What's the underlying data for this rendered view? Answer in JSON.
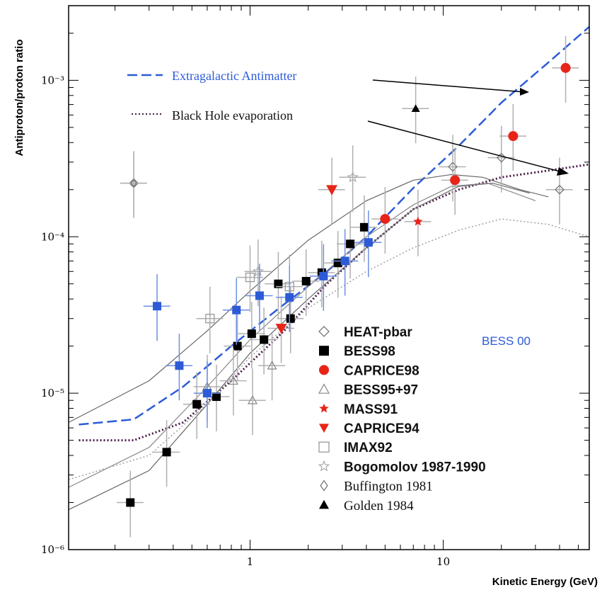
{
  "chart_data": {
    "type": "scatter",
    "xlabel": "Kinetic Energy (GeV)",
    "ylabel": "Antiproton/proton ratio",
    "xscale": "log",
    "yscale": "log",
    "xlim": [
      0.115,
      57
    ],
    "ylim": [
      1e-06,
      0.003
    ],
    "x_ticks": [
      {
        "value": 1,
        "label": "1"
      },
      {
        "value": 10,
        "label": "10"
      }
    ],
    "y_ticks": [
      {
        "value": 1e-06,
        "label": "10⁻⁶"
      },
      {
        "value": 1e-05,
        "label": "10⁻⁵"
      },
      {
        "value": 0.0001,
        "label": "10⁻⁴"
      },
      {
        "value": 0.001,
        "label": "10⁻³"
      }
    ],
    "annotations": [
      {
        "text": "Extragalactic Antimatter",
        "color": "#2d5bd8",
        "style": "dashed"
      },
      {
        "text": "Black Hole evaporation",
        "color": "#111111",
        "style": "dotted"
      },
      {
        "text": "BESS 00",
        "color": "#2d5bd8"
      }
    ],
    "legend_position": "lower-right",
    "series": [
      {
        "name": "HEAT-pbar",
        "marker": "diamond-open",
        "color": "#777777",
        "points": [
          [
            0.25,
            0.00022
          ],
          [
            11.2,
            0.00028
          ],
          [
            20,
            0.00032
          ],
          [
            40,
            0.0002
          ]
        ]
      },
      {
        "name": "BESS98",
        "marker": "square",
        "color": "#000000",
        "points": [
          [
            0.24,
            2e-06
          ],
          [
            0.37,
            4.2e-06
          ],
          [
            0.53,
            8.5e-06
          ],
          [
            0.67,
            9.5e-06
          ],
          [
            0.86,
            2e-05
          ],
          [
            1.02,
            2.4e-05
          ],
          [
            1.18,
            2.2e-05
          ],
          [
            1.4,
            5e-05
          ],
          [
            1.62,
            3e-05
          ],
          [
            1.95,
            5.2e-05
          ],
          [
            2.35,
            5.9e-05
          ],
          [
            2.85,
            6.8e-05
          ],
          [
            3.3,
            9e-05
          ],
          [
            3.9,
            0.000115
          ]
        ]
      },
      {
        "name": "CAPRICE98",
        "marker": "circle",
        "color": "#e82418",
        "points": [
          [
            5.0,
            0.00013
          ],
          [
            11.5,
            0.00023
          ],
          [
            23,
            0.00044
          ],
          [
            43,
            0.0012
          ]
        ]
      },
      {
        "name": "BESS95+97",
        "marker": "triangle-open",
        "color": "#888888",
        "points": [
          [
            0.6,
            1.1e-05
          ],
          [
            0.82,
            1.2e-05
          ],
          [
            1.03,
            9e-06
          ],
          [
            1.3,
            1.5e-05
          ]
        ]
      },
      {
        "name": "MASS91",
        "marker": "star",
        "color": "#e82418",
        "points": [
          [
            7.4,
            0.000125
          ]
        ]
      },
      {
        "name": "CAPRICE94",
        "marker": "triangle-down",
        "color": "#e82418",
        "points": [
          [
            1.45,
            2.6e-05
          ],
          [
            2.65,
            0.0002
          ]
        ]
      },
      {
        "name": "IMAX92",
        "marker": "square-open",
        "color": "#999999",
        "points": [
          [
            0.62,
            3e-05
          ],
          [
            1.0,
            5.5e-05
          ],
          [
            1.6,
            4.8e-05
          ]
        ]
      },
      {
        "name": "Bogomolov 1987-1990",
        "marker": "star-open",
        "color": "#aaaaaa",
        "points": [
          [
            3.4,
            0.00024
          ],
          [
            1.1,
            6e-05
          ]
        ]
      },
      {
        "name": "Buffington 1981",
        "marker": "diamond-small",
        "color": "#777777",
        "points": [
          [
            0.25,
            0.00022
          ]
        ]
      },
      {
        "name": "Golden 1984",
        "marker": "triangle",
        "color": "#000000",
        "points": [
          [
            7.2,
            0.00066
          ]
        ]
      },
      {
        "name": "BESS 00",
        "marker": "square",
        "color": "#2d5bd8",
        "points": [
          [
            0.33,
            3.6e-05
          ],
          [
            0.43,
            1.5e-05
          ],
          [
            0.6,
            1e-05
          ],
          [
            0.85,
            3.4e-05
          ],
          [
            1.12,
            4.2e-05
          ],
          [
            1.6,
            4.1e-05
          ],
          [
            2.4,
            5.6e-05
          ],
          [
            3.1,
            7e-05
          ],
          [
            4.1,
            9.2e-05
          ]
        ]
      }
    ],
    "curves": [
      {
        "name": "Extragalactic Antimatter",
        "style": "dashed",
        "color": "#2d5bd8",
        "points": [
          [
            0.13,
            6.3e-06
          ],
          [
            0.25,
            6.8e-06
          ],
          [
            0.45,
            1.1e-05
          ],
          [
            0.8,
            2e-05
          ],
          [
            1.5,
            3.7e-05
          ],
          [
            2.5,
            6e-05
          ],
          [
            4,
            0.0001
          ],
          [
            7,
            0.000205
          ],
          [
            12,
            0.00038
          ],
          [
            20,
            0.00072
          ],
          [
            35,
            0.0013
          ],
          [
            57,
            0.0022
          ]
        ]
      },
      {
        "name": "Black Hole evaporation",
        "style": "dotted",
        "color": "#4a1a4a",
        "points": [
          [
            0.13,
            5e-06
          ],
          [
            0.25,
            5e-06
          ],
          [
            0.45,
            6.5e-06
          ],
          [
            0.8,
            1.2e-05
          ],
          [
            1.5,
            2.5e-05
          ],
          [
            2.5,
            5e-05
          ],
          [
            4,
            8.5e-05
          ],
          [
            7,
            0.00015
          ],
          [
            12,
            0.0002
          ],
          [
            20,
            0.00024
          ],
          [
            35,
            0.000265
          ],
          [
            57,
            0.00029
          ]
        ]
      },
      {
        "name": "",
        "style": "solid",
        "color": "#666666",
        "points": [
          [
            0.115,
            6.5e-06
          ],
          [
            0.3,
            1.2e-05
          ],
          [
            0.6,
            2.5e-05
          ],
          [
            1.0,
            4.5e-05
          ],
          [
            2.0,
            9.5e-05
          ],
          [
            4,
            0.00017
          ],
          [
            7,
            0.00023
          ],
          [
            11,
            0.00025
          ],
          [
            16,
            0.00024
          ],
          [
            25,
            0.0002
          ],
          [
            35,
            0.00018
          ]
        ]
      },
      {
        "name": "",
        "style": "solid",
        "color": "#666666",
        "points": [
          [
            0.115,
            1.8e-06
          ],
          [
            0.3,
            3.2e-06
          ],
          [
            0.6,
            8.5e-06
          ],
          [
            1.0,
            1.8e-05
          ],
          [
            2.0,
            4e-05
          ],
          [
            4,
            8.5e-05
          ],
          [
            7,
            0.00015
          ],
          [
            12,
            0.00021
          ],
          [
            18,
            0.00022
          ],
          [
            28,
            0.00019
          ]
        ]
      },
      {
        "name": "",
        "style": "solid",
        "color": "#888888",
        "points": [
          [
            0.115,
            2.5e-06
          ],
          [
            0.3,
            4.5e-06
          ],
          [
            0.6,
            1.1e-05
          ],
          [
            1.0,
            2.2e-05
          ],
          [
            2.0,
            4.8e-05
          ],
          [
            4,
            0.0001
          ],
          [
            7,
            0.00016
          ],
          [
            11,
            0.00021
          ],
          [
            17,
            0.00022
          ],
          [
            30,
            0.00017
          ]
        ]
      },
      {
        "name": "",
        "style": "dotted",
        "color": "#999999",
        "points": [
          [
            0.115,
            2.8e-06
          ],
          [
            0.3,
            4e-06
          ],
          [
            0.6,
            8.5e-06
          ],
          [
            1.0,
            1.7e-05
          ],
          [
            2.0,
            3.5e-05
          ],
          [
            4,
            6e-05
          ],
          [
            7,
            8.5e-05
          ],
          [
            12,
            0.00011
          ],
          [
            20,
            0.00013
          ],
          [
            35,
            0.00012
          ],
          [
            57,
            0.0001
          ]
        ]
      }
    ]
  }
}
